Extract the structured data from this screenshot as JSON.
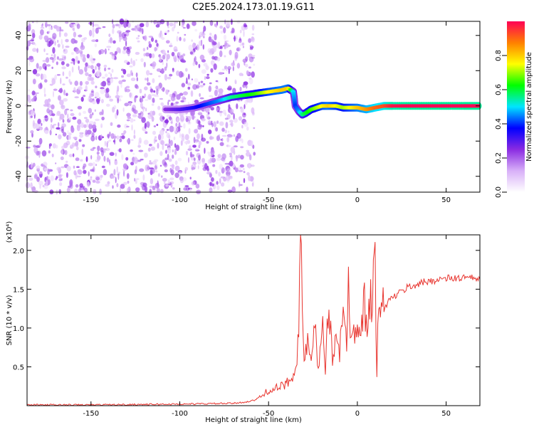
{
  "title": "C2E5.2024.173.01.19.G11",
  "chart_data": [
    {
      "type": "heatmap",
      "xlabel": "Height of straight line (km)",
      "ylabel": "Frequency (Hz)",
      "xlim": [
        -186,
        69
      ],
      "ylim": [
        -49,
        48
      ],
      "xticks": [
        -150,
        -100,
        -50,
        0,
        50
      ],
      "yticks": [
        -40,
        -20,
        0,
        20,
        40
      ],
      "grid": false,
      "colormap": [
        "#ffffff",
        "#d8b0f8",
        "#8a2be2",
        "#0000ff",
        "#00e5ff",
        "#00ff00",
        "#ffff00",
        "#ff8000",
        "#ff0055"
      ],
      "colorbar": {
        "label": "Normalized spectral amplitude",
        "range": [
          0,
          1
        ],
        "ticks": [
          0.0,
          0.2,
          0.4,
          0.6,
          0.8
        ]
      },
      "noise_region": {
        "x": [
          -186,
          -58
        ],
        "amplitude": 0.25
      },
      "ridge": {
        "x": [
          -108,
          -100,
          -92,
          -85,
          -78,
          -71,
          -64,
          -57,
          -50,
          -43,
          -39,
          -36,
          -35,
          -33,
          -31,
          -29,
          -26,
          -23,
          -20,
          -16,
          -12,
          -8,
          -4,
          0,
          5,
          10,
          15,
          20,
          30,
          40,
          50,
          60,
          68
        ],
        "freq": [
          -2,
          -2,
          -1,
          1,
          3,
          5,
          6,
          7,
          8,
          9,
          10,
          8,
          0,
          -3,
          -5,
          -4,
          -2,
          -1,
          0,
          0,
          0,
          -1,
          -1,
          -1,
          -2,
          -1,
          0,
          0,
          0,
          0,
          0,
          0,
          0
        ],
        "amplitude": [
          0.25,
          0.3,
          0.35,
          0.4,
          0.45,
          0.55,
          0.6,
          0.65,
          0.75,
          0.8,
          0.8,
          0.5,
          0.4,
          0.45,
          0.55,
          0.6,
          0.65,
          0.7,
          0.75,
          0.8,
          0.75,
          0.7,
          0.75,
          0.8,
          0.85,
          0.9,
          0.92,
          0.98,
          1.0,
          1.0,
          1.0,
          1.0,
          1.0
        ]
      }
    },
    {
      "type": "line",
      "xlabel": "Height of straight line (km)",
      "ylabel": "SNR (10 * v/v)",
      "y_scale_note": "(x10⁴)",
      "xlim": [
        -186,
        69
      ],
      "ylim": [
        0,
        2.2
      ],
      "xticks": [
        -150,
        -100,
        -50,
        0,
        50
      ],
      "yticks": [
        0.5,
        1.0,
        1.5,
        2.0
      ],
      "grid": false,
      "color": "#e8352f",
      "series": [
        {
          "x": [
            -186,
            -150,
            -100,
            -70,
            -62,
            -58,
            -54,
            -50,
            -46,
            -42,
            -38,
            -35,
            -33,
            -32,
            -31,
            -30,
            -28,
            -26,
            -24,
            -22,
            -20,
            -18,
            -16,
            -14,
            -12,
            -10,
            -8,
            -6,
            -5,
            -4,
            -2,
            0,
            2,
            4,
            6,
            8,
            10,
            11,
            12,
            14,
            16,
            18,
            20,
            24,
            28,
            32,
            36,
            40,
            44,
            48,
            52,
            56,
            60,
            64,
            69
          ],
          "y": [
            0.01,
            0.01,
            0.02,
            0.03,
            0.05,
            0.07,
            0.12,
            0.2,
            0.22,
            0.25,
            0.32,
            0.5,
            0.9,
            2.18,
            1.2,
            0.6,
            0.8,
            0.5,
            1.0,
            0.4,
            1.1,
            0.5,
            1.3,
            0.6,
            1.0,
            0.7,
            1.1,
            0.8,
            2.0,
            1.0,
            0.9,
            1.2,
            1.0,
            1.3,
            1.1,
            1.4,
            1.8,
            0.45,
            1.3,
            1.2,
            1.3,
            1.35,
            1.4,
            1.45,
            1.52,
            1.55,
            1.58,
            1.6,
            1.62,
            1.63,
            1.64,
            1.64,
            1.65,
            1.64,
            1.63
          ]
        }
      ]
    }
  ]
}
